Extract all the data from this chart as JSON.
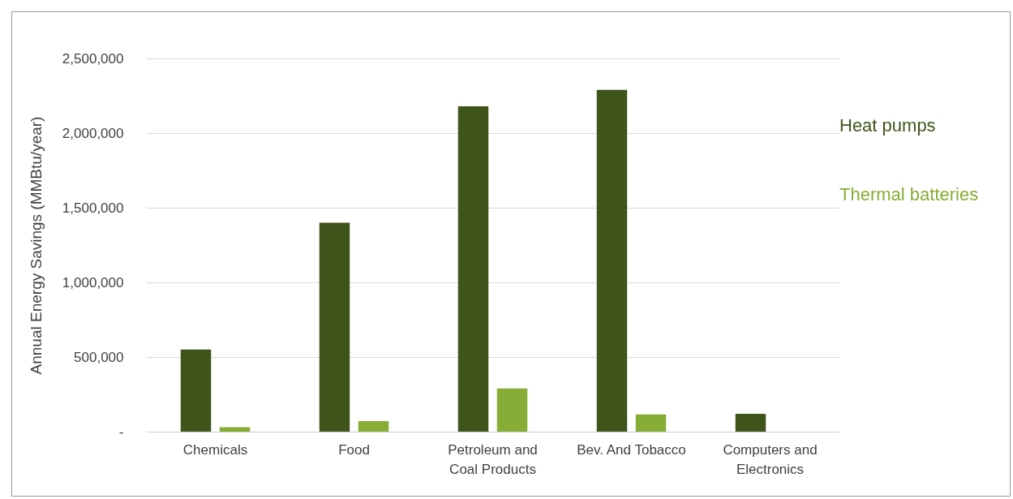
{
  "chart_data": {
    "type": "bar",
    "ylabel": "Annual Energy Savings (MMBtu/year)",
    "categories": [
      "Chemicals",
      "Food",
      "Petroleum and Coal Products",
      "Bev. And Tobacco",
      "Computers and Electronics"
    ],
    "series": [
      {
        "name": "Heat pumps",
        "color": "#3f541a",
        "values": [
          550000,
          1400000,
          2180000,
          2290000,
          120000
        ]
      },
      {
        "name": "Thermal batteries",
        "color": "#86ad35",
        "values": [
          30000,
          70000,
          290000,
          115000,
          null
        ]
      }
    ],
    "ylim": [
      0,
      2500000
    ],
    "yticks": [
      {
        "value": 0,
        "label": "-"
      },
      {
        "value": 500000,
        "label": "500,000"
      },
      {
        "value": 1000000,
        "label": "1,000,000"
      },
      {
        "value": 1500000,
        "label": "1,500,000"
      },
      {
        "value": 2000000,
        "label": "2,000,000"
      },
      {
        "value": 2500000,
        "label": "2,500,000"
      }
    ],
    "grid": "y",
    "legend": "right"
  }
}
